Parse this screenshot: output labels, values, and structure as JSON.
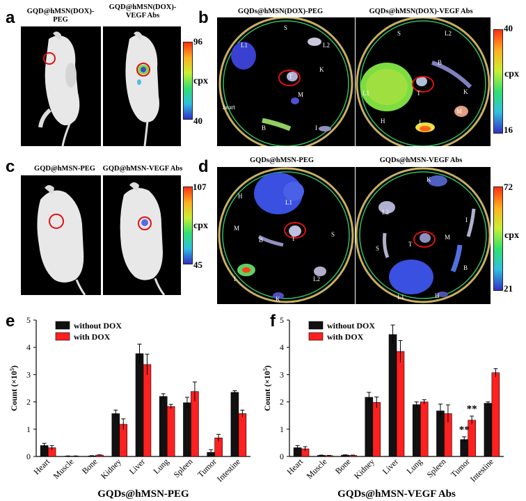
{
  "panels": {
    "a": {
      "letter": "a",
      "left_label": "GQD@hMSN(DOX)-PEG",
      "right_label": "GQD@hMSN(DOX)-\nVEGF Abs",
      "cbar_max": "96",
      "cbar_min": "40",
      "cbar_unit": "cpx"
    },
    "b": {
      "letter": "b",
      "left_label": "GQDs@hMSN(DOX)-PEG",
      "right_label": "GQDs@hMSN(DOX)-VEGF Abs",
      "cbar_max": "40",
      "cbar_min": "16",
      "cbar_unit": "cpx",
      "left_organs": {
        "L1": "L1",
        "S": "S",
        "L2": "L2",
        "T": "T",
        "K": "K",
        "M": "M",
        "heart": "heart",
        "B": "B",
        "I": "I"
      },
      "right_organs": {
        "S": "S",
        "L2": "L2",
        "B": "B",
        "L1": "L1",
        "T": "T",
        "K": "K",
        "H": "H",
        "M": "M",
        "I": "I"
      }
    },
    "c": {
      "letter": "c",
      "left_label": "GQD@hMSN-PEG",
      "right_label": "GQD@hMSN-VEGF Abs",
      "cbar_max": "107",
      "cbar_min": "45",
      "cbar_unit": "cpx"
    },
    "d": {
      "letter": "d",
      "left_label": "GQDs@hMSN-PEG",
      "right_label": "GQDs@hMSN-VEGF Abs",
      "cbar_max": "72",
      "cbar_min": "21",
      "cbar_unit": "cpx",
      "left_organs": {
        "H": "H",
        "L1": "L1",
        "M": "M",
        "T": "T",
        "S": "S",
        "B": "B",
        "I": "I",
        "L2": "L2",
        "K": "K"
      },
      "right_organs": {
        "K": "K",
        "L2": "L2",
        "I": "I",
        "S": "S",
        "T": "T",
        "M": "M",
        "B": "B",
        "L1": "L1",
        "H": "H"
      }
    },
    "e": {
      "letter": "e"
    },
    "f": {
      "letter": "f"
    }
  },
  "colors": {
    "without_dox": "#111111",
    "with_dox": "#ff2020",
    "highlight_circle": "#e01010"
  },
  "chart_data": [
    {
      "type": "bar",
      "panel": "e",
      "title": "",
      "xlabel": "GQDs@hMSN-PEG",
      "ylabel": "Count (×10",
      "ylabel_sup": "5",
      "ylabel_close": ")",
      "ylim": [
        0,
        5
      ],
      "yticks": [
        "0",
        "1",
        "2",
        "3",
        "4",
        "5"
      ],
      "legend_position": "top-left",
      "categories": [
        "Heart",
        "Muscle",
        "Bone",
        "Kidney",
        "Liver",
        "Lung",
        "Spleen",
        "Tumor",
        "Intestine"
      ],
      "series": [
        {
          "name": "without DOX",
          "values": [
            0.4,
            0.01,
            0.02,
            1.57,
            3.77,
            2.2,
            1.97,
            0.15,
            2.35
          ],
          "errors": [
            0.08,
            0.01,
            0.01,
            0.13,
            0.35,
            0.1,
            0.2,
            0.1,
            0.06
          ]
        },
        {
          "name": "with DOX",
          "values": [
            0.32,
            0.01,
            0.05,
            1.18,
            3.37,
            1.83,
            2.38,
            0.68,
            1.57
          ],
          "errors": [
            0.08,
            0.01,
            0.01,
            0.2,
            0.38,
            0.08,
            0.35,
            0.13,
            0.13
          ]
        }
      ],
      "annotations": []
    },
    {
      "type": "bar",
      "panel": "f",
      "title": "",
      "xlabel": "GQDs@hMSN-VEGF Abs",
      "ylabel": "Count (×10",
      "ylabel_sup": "5",
      "ylabel_close": ")",
      "ylim": [
        0,
        5
      ],
      "yticks": [
        "0",
        "1",
        "2",
        "3",
        "4",
        "5"
      ],
      "legend_position": "top-left",
      "categories": [
        "Heart",
        "Muscle",
        "Bone",
        "Kidney",
        "Liver",
        "Lung",
        "Spleen",
        "Tumor",
        "Intestine"
      ],
      "series": [
        {
          "name": "without DOX",
          "values": [
            0.32,
            0.04,
            0.05,
            2.17,
            4.47,
            1.9,
            1.67,
            0.62,
            1.95
          ],
          "errors": [
            0.08,
            0.01,
            0.01,
            0.18,
            0.35,
            0.1,
            0.25,
            0.1,
            0.05
          ]
        },
        {
          "name": "with DOX",
          "values": [
            0.28,
            0.03,
            0.04,
            1.98,
            3.85,
            2.0,
            1.57,
            1.33,
            3.07
          ],
          "errors": [
            0.08,
            0.01,
            0.01,
            0.2,
            0.4,
            0.08,
            0.32,
            0.15,
            0.15
          ]
        }
      ],
      "annotations": [
        {
          "category": "Tumor",
          "text": "**"
        },
        {
          "category": "Tumor",
          "text": "**"
        }
      ]
    }
  ]
}
